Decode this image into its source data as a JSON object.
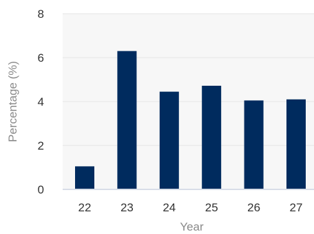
{
  "chart_data": {
    "type": "bar",
    "title": "",
    "xlabel": "Year",
    "ylabel": "Percentage (%)",
    "categories": [
      "22",
      "23",
      "24",
      "25",
      "26",
      "27"
    ],
    "values": [
      1.05,
      6.3,
      4.45,
      4.72,
      4.05,
      4.1
    ],
    "ylim": [
      0,
      8
    ],
    "yticks": [
      "0",
      "2",
      "4",
      "6",
      "8"
    ],
    "grid": true,
    "legend": "none",
    "colors": {
      "bar": "#002b5e",
      "plot_background": "#f7f7f7",
      "gridline": "#e6e6e6",
      "baseline": "#d8dde8"
    }
  }
}
